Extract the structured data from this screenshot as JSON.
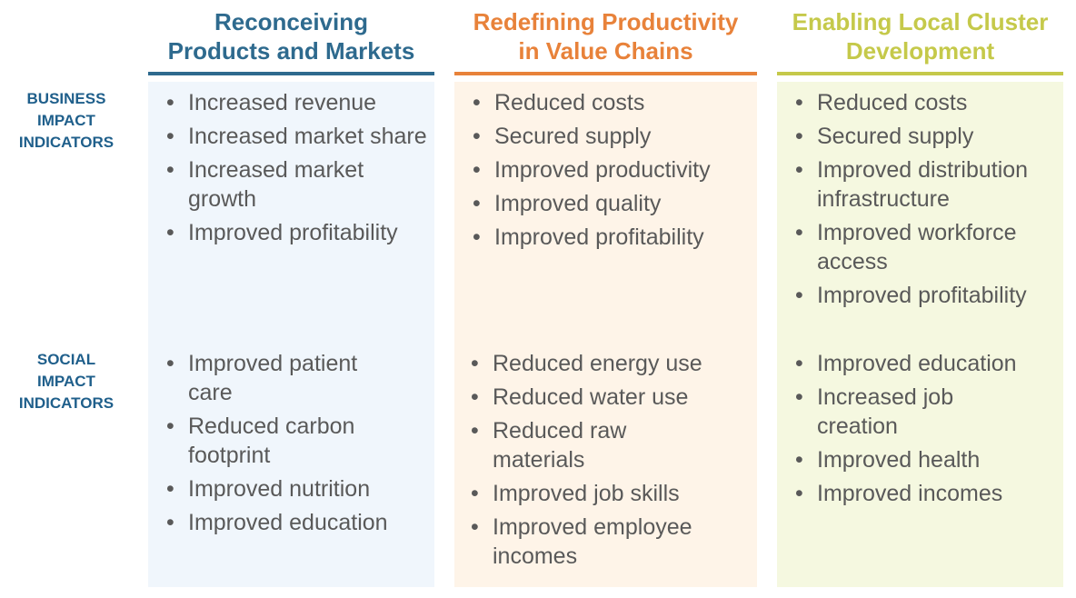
{
  "columns": [
    {
      "title_line1": "Reconceiving",
      "title_line2": "Products and Markets",
      "color": "#2e6a8e",
      "panel_color": "#f0f6fc",
      "business": [
        "Increased revenue",
        "Increased market share",
        "Increased market growth",
        "Improved profitability"
      ],
      "social": [
        "Improved patient care",
        "Reduced carbon footprint",
        "Improved nutrition",
        "Improved education"
      ]
    },
    {
      "title_line1": "Redefining Productivity",
      "title_line2": "in Value Chains",
      "color": "#e8823a",
      "panel_color": "#fef4e8",
      "business": [
        "Reduced costs",
        "Secured supply",
        "Improved productivity",
        "Improved quality",
        "Improved profitability"
      ],
      "social": [
        "Reduced energy use",
        "Reduced water use",
        "Reduced raw materials",
        "Improved job skills",
        "Improved employee incomes"
      ]
    },
    {
      "title_line1": "Enabling Local Cluster",
      "title_line2": "Development",
      "color": "#c5c94a",
      "panel_color": "#f5f8e0",
      "business": [
        "Reduced costs",
        "Secured supply",
        "Improved distribution infrastructure",
        "Improved workforce access",
        "Improved profitability"
      ],
      "social": [
        "Improved education",
        "Increased job creation",
        "Improved health",
        "Improved incomes"
      ]
    }
  ],
  "rows": {
    "business": {
      "line1": "BUSINESS",
      "line2": "IMPACT",
      "line3": "INDICATORS"
    },
    "social": {
      "line1": "SOCIAL",
      "line2": "IMPACT",
      "line3": "INDICATORS"
    }
  }
}
